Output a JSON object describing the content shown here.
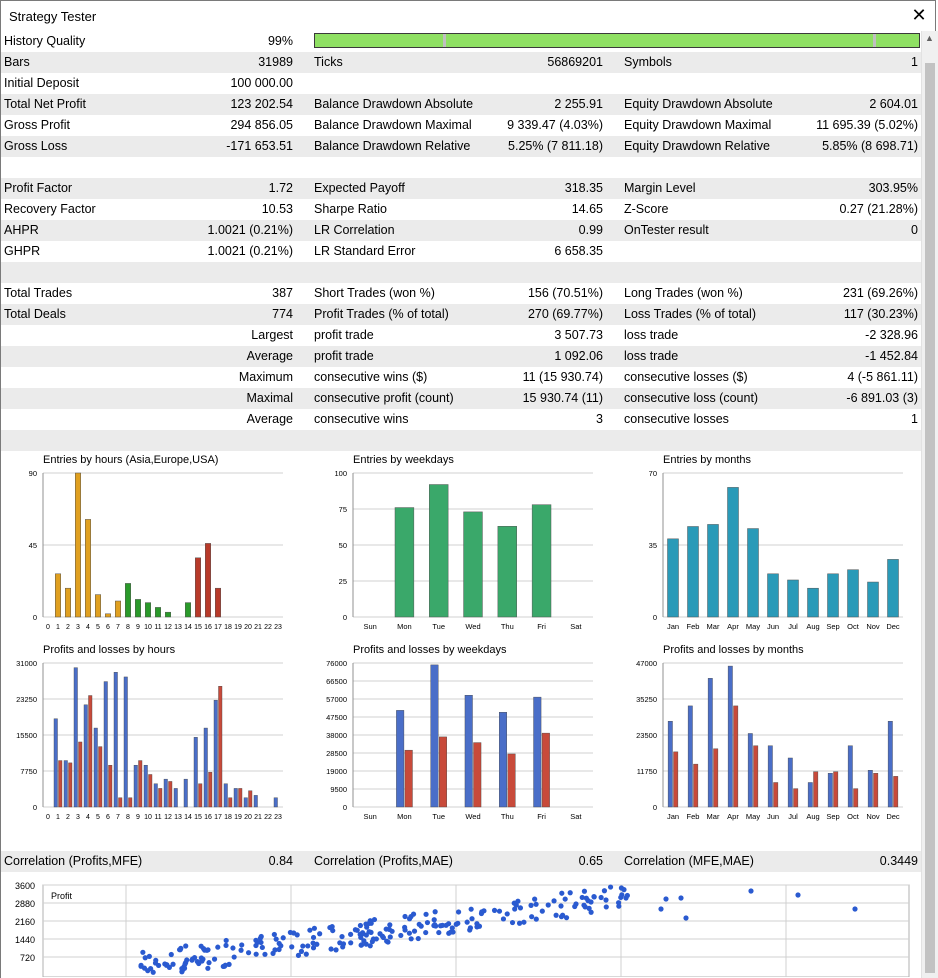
{
  "window": {
    "title": "Strategy Tester",
    "close_icon": "close-icon"
  },
  "history": {
    "label": "History Quality",
    "value": "99%",
    "quality": 0.99
  },
  "stats_rows": [
    {
      "shade": true,
      "c": [
        "Bars",
        "31989",
        "Ticks",
        "56869201",
        "Symbols",
        "1"
      ]
    },
    {
      "shade": false,
      "c": [
        "Initial Deposit",
        "100 000.00",
        "",
        "",
        "",
        ""
      ]
    },
    {
      "shade": true,
      "c": [
        "Total Net Profit",
        "123 202.54",
        "Balance Drawdown Absolute",
        "2 255.91",
        "Equity Drawdown Absolute",
        "2 604.01"
      ]
    },
    {
      "shade": false,
      "c": [
        "Gross Profit",
        "294 856.05",
        "Balance Drawdown Maximal",
        "9 339.47 (4.03%)",
        "Equity Drawdown Maximal",
        "11 695.39 (5.02%)"
      ]
    },
    {
      "shade": true,
      "c": [
        "Gross Loss",
        "-171 653.51",
        "Balance Drawdown Relative",
        "5.25% (7 811.18)",
        "Equity Drawdown Relative",
        "5.85% (8 698.71)"
      ]
    },
    {
      "shade": false,
      "c": [
        "",
        "",
        "",
        "",
        "",
        ""
      ]
    },
    {
      "shade": true,
      "c": [
        "Profit Factor",
        "1.72",
        "Expected Payoff",
        "318.35",
        "Margin Level",
        "303.95%"
      ]
    },
    {
      "shade": false,
      "c": [
        "Recovery Factor",
        "10.53",
        "Sharpe Ratio",
        "14.65",
        "Z-Score",
        "0.27 (21.28%)"
      ]
    },
    {
      "shade": true,
      "c": [
        "AHPR",
        "1.0021 (0.21%)",
        "LR Correlation",
        "0.99",
        "OnTester result",
        "0"
      ]
    },
    {
      "shade": false,
      "c": [
        "GHPR",
        "1.0021 (0.21%)",
        "LR Standard Error",
        "6 658.35",
        "",
        ""
      ]
    },
    {
      "shade": true,
      "c": [
        "",
        "",
        "",
        "",
        "",
        ""
      ]
    },
    {
      "shade": false,
      "c": [
        "Total Trades",
        "387",
        "Short Trades (won %)",
        "156 (70.51%)",
        "Long Trades (won %)",
        "231 (69.26%)"
      ]
    },
    {
      "shade": true,
      "c": [
        "Total Deals",
        "774",
        "Profit Trades (% of total)",
        "270 (69.77%)",
        "Loss Trades (% of total)",
        "117 (30.23%)"
      ]
    },
    {
      "shade": false,
      "c": [
        "",
        "Largest",
        "profit trade",
        "3 507.73",
        "loss trade",
        "-2 328.96"
      ]
    },
    {
      "shade": true,
      "c": [
        "",
        "Average",
        "profit trade",
        "1 092.06",
        "loss trade",
        "-1 452.84"
      ]
    },
    {
      "shade": false,
      "c": [
        "",
        "Maximum",
        "consecutive wins ($)",
        "11 (15 930.74)",
        "consecutive losses ($)",
        "4 (-5 861.11)"
      ]
    },
    {
      "shade": true,
      "c": [
        "",
        "Maximal",
        "consecutive profit (count)",
        "15 930.74 (11)",
        "consecutive loss (count)",
        "-6 891.03 (3)"
      ]
    },
    {
      "shade": false,
      "c": [
        "",
        "Average",
        "consecutive wins",
        "3",
        "consecutive losses",
        "1"
      ]
    },
    {
      "shade": true,
      "c": [
        "",
        "",
        "",
        "",
        "",
        ""
      ]
    }
  ],
  "correlation": [
    "Correlation (Profits,MFE)",
    "0.84",
    "Correlation (Profits,MAE)",
    "0.65",
    "Correlation (MFE,MAE)",
    "0.3449"
  ],
  "colors": {
    "orange": "#e0a020",
    "green": "#2a9a2a",
    "red": "#b83a2a",
    "weekday": "#3aa86a",
    "month": "#2a9ab8",
    "profit_blue": "#4a6ec8",
    "loss_red": "#c84a3a",
    "scatter": "#2a5ad0",
    "grid": "#d0d0d0"
  },
  "chart_data": [
    {
      "type": "bar",
      "title": "Entries by hours (Asia,Europe,USA)",
      "categories": [
        "0",
        "1",
        "2",
        "3",
        "4",
        "5",
        "6",
        "7",
        "8",
        "9",
        "10",
        "11",
        "12",
        "13",
        "14",
        "15",
        "16",
        "17",
        "18",
        "19",
        "20",
        "21",
        "22",
        "23"
      ],
      "values": [
        0,
        27,
        18,
        90,
        61,
        14,
        2,
        10,
        21,
        11,
        9,
        6,
        3,
        0,
        9,
        37,
        46,
        18,
        0,
        0,
        0,
        0,
        0,
        0
      ],
      "yticks": [
        "0",
        "45",
        "90"
      ],
      "ylim": [
        0,
        90
      ]
    },
    {
      "type": "bar",
      "title": "Entries by weekdays",
      "categories": [
        "Sun",
        "Mon",
        "Tue",
        "Wed",
        "Thu",
        "Fri",
        "Sat"
      ],
      "values": [
        0,
        76,
        92,
        73,
        63,
        78,
        0
      ],
      "yticks": [
        "0",
        "25",
        "50",
        "75",
        "100"
      ],
      "ylim": [
        0,
        100
      ]
    },
    {
      "type": "bar",
      "title": "Entries by months",
      "categories": [
        "Jan",
        "Feb",
        "Mar",
        "Apr",
        "May",
        "Jun",
        "Jul",
        "Aug",
        "Sep",
        "Oct",
        "Nov",
        "Dec"
      ],
      "values": [
        38,
        44,
        45,
        63,
        43,
        21,
        18,
        14,
        21,
        23,
        17,
        28
      ],
      "yticks": [
        "0",
        "35",
        "70"
      ],
      "ylim": [
        0,
        70
      ]
    },
    {
      "type": "bar",
      "title": "Profits and losses by hours",
      "categories": [
        "0",
        "1",
        "2",
        "3",
        "4",
        "5",
        "6",
        "7",
        "8",
        "9",
        "10",
        "11",
        "12",
        "13",
        "14",
        "15",
        "16",
        "17",
        "18",
        "19",
        "20",
        "21",
        "22",
        "23"
      ],
      "series": [
        {
          "values": [
            0,
            19000,
            10000,
            30000,
            22000,
            17000,
            27000,
            29000,
            28000,
            9000,
            9000,
            5000,
            6000,
            4000,
            6000,
            15000,
            17000,
            23000,
            5000,
            4000,
            2000,
            2500,
            0,
            2000
          ]
        },
        {
          "values": [
            0,
            10000,
            9500,
            14000,
            24000,
            13000,
            9000,
            2000,
            2000,
            10000,
            7000,
            4000,
            5500,
            0,
            0,
            5000,
            7500,
            26000,
            2000,
            4000,
            3500,
            0,
            0,
            0
          ]
        }
      ],
      "yticks": [
        "0",
        "7750",
        "15500",
        "23250",
        "31000"
      ],
      "ylim": [
        0,
        31000
      ]
    },
    {
      "type": "bar",
      "title": "Profits and losses by weekdays",
      "categories": [
        "Sun",
        "Mon",
        "Tue",
        "Wed",
        "Thu",
        "Fri",
        "Sat"
      ],
      "series": [
        {
          "values": [
            0,
            51000,
            75000,
            59000,
            50000,
            58000,
            0
          ]
        },
        {
          "values": [
            0,
            30000,
            37000,
            34000,
            28000,
            39000,
            0
          ]
        }
      ],
      "yticks": [
        "0",
        "9500",
        "19000",
        "28500",
        "38000",
        "47500",
        "57000",
        "66500",
        "76000"
      ],
      "ylim": [
        0,
        76000
      ]
    },
    {
      "type": "bar",
      "title": "Profits and losses by months",
      "categories": [
        "Jan",
        "Feb",
        "Mar",
        "Apr",
        "May",
        "Jun",
        "Jul",
        "Aug",
        "Sep",
        "Oct",
        "Nov",
        "Dec"
      ],
      "series": [
        {
          "values": [
            28000,
            33000,
            42000,
            46000,
            24000,
            20000,
            16000,
            8000,
            11000,
            20000,
            12000,
            28000
          ]
        },
        {
          "values": [
            18000,
            14000,
            19000,
            33000,
            20000,
            8000,
            6000,
            11500,
            11500,
            6000,
            11000,
            10000
          ]
        }
      ],
      "yticks": [
        "0",
        "11750",
        "23500",
        "35250",
        "47000"
      ],
      "ylim": [
        0,
        47000
      ]
    },
    {
      "type": "scatter",
      "title": "Profit",
      "yticks": [
        "720",
        "1440",
        "2160",
        "2880",
        "3600"
      ],
      "ylim": [
        0,
        3600
      ]
    }
  ]
}
